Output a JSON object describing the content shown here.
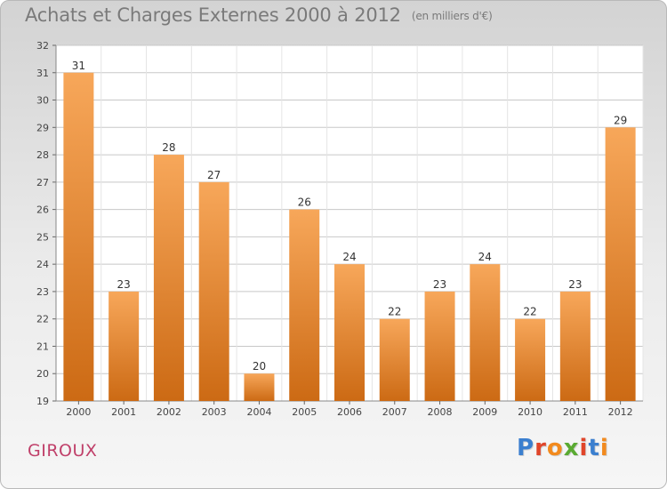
{
  "title": "Achats et Charges Externes 2000 à 2012",
  "title_unit": "(en milliers d'€)",
  "commune": "GIROUX",
  "logo": {
    "text": "Proxiti",
    "colors": [
      "#3b7fcf",
      "#e0452a",
      "#f28a1e",
      "#5aaa32",
      "#e0452a",
      "#3b7fcf",
      "#f28a1e"
    ]
  },
  "colors": {
    "bar_top": "#f7a75a",
    "bar_bottom": "#cc6a14",
    "grid": "#c8c8c8",
    "title": "#7a7a7a",
    "commune": "#c0406a"
  },
  "chart_data": {
    "type": "bar",
    "categories": [
      "2000",
      "2001",
      "2002",
      "2003",
      "2004",
      "2005",
      "2006",
      "2007",
      "2008",
      "2009",
      "2010",
      "2011",
      "2012"
    ],
    "values": [
      31,
      23,
      28,
      27,
      20,
      26,
      24,
      22,
      23,
      24,
      22,
      23,
      29
    ],
    "ylim": [
      19,
      32
    ],
    "yticks": [
      19,
      20,
      21,
      22,
      23,
      24,
      25,
      26,
      27,
      28,
      29,
      30,
      31,
      32
    ],
    "grid": true,
    "data_labels": true
  }
}
